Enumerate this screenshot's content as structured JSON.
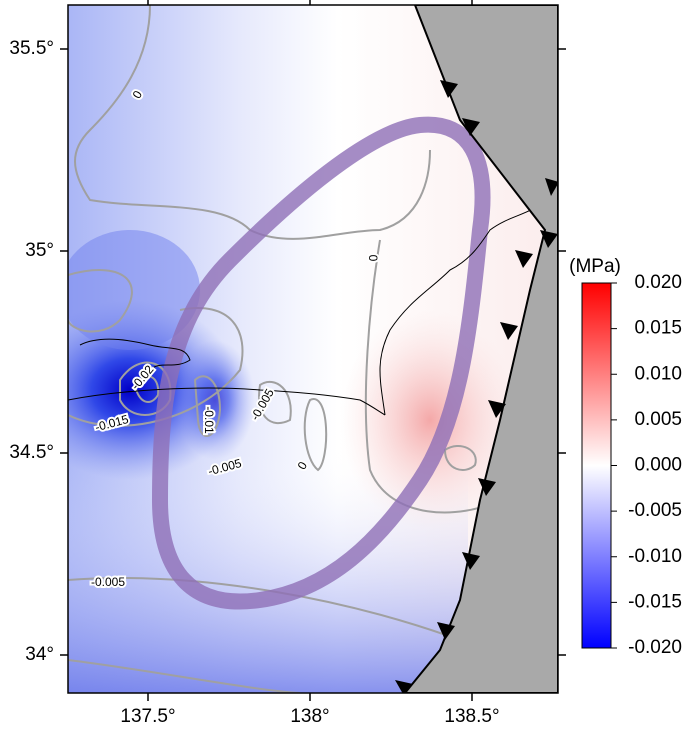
{
  "map": {
    "lat_ticks": [
      {
        "value": 35.5,
        "label": "35.5°"
      },
      {
        "value": 35,
        "label": "35°"
      },
      {
        "value": 34.5,
        "label": "34.5°"
      },
      {
        "value": 34,
        "label": "34°"
      }
    ],
    "lon_ticks": [
      {
        "value": 137.5,
        "label": "137.5°"
      },
      {
        "value": 138,
        "label": "138°"
      },
      {
        "value": 138.5,
        "label": "138.5°"
      }
    ],
    "contour_labels": [
      "0",
      "0",
      "0",
      "-0.005",
      "-0.005",
      "-0.005",
      "-0.01",
      "-0.015",
      "-0.02"
    ],
    "colorbar": {
      "unit": "(MPa)",
      "ticks": [
        {
          "value": 0.02,
          "label": "0.020"
        },
        {
          "value": 0.015,
          "label": "0.015"
        },
        {
          "value": 0.01,
          "label": "0.010"
        },
        {
          "value": 0.005,
          "label": "0.005"
        },
        {
          "value": 0,
          "label": "0.000"
        },
        {
          "value": -0.005,
          "label": "-0.005"
        },
        {
          "value": -0.01,
          "label": "-0.010"
        },
        {
          "value": -0.015,
          "label": "-0.015"
        },
        {
          "value": -0.02,
          "label": "-0.020"
        }
      ]
    }
  }
}
